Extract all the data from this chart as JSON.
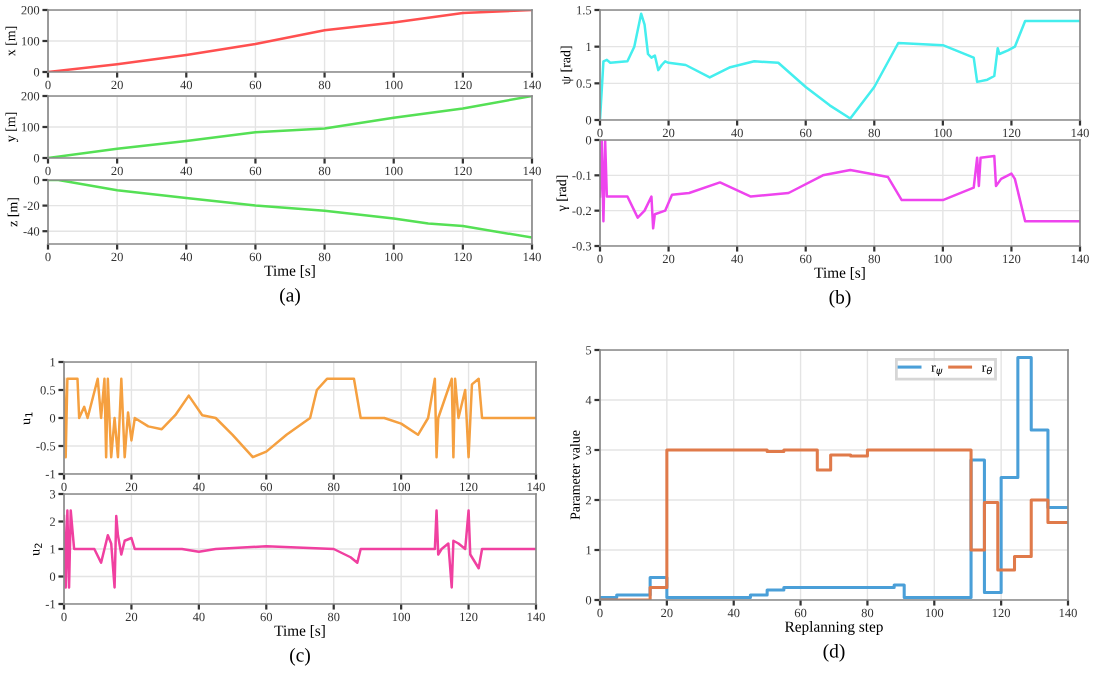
{
  "chart_data": [
    {
      "type": "line",
      "ylabel": "x [m]",
      "x": [
        0,
        20,
        40,
        60,
        80,
        100,
        120,
        140
      ],
      "series": [
        {
          "color": "#ff5050",
          "values": [
            0,
            25,
            55,
            90,
            135,
            160,
            190,
            200
          ]
        }
      ],
      "xlim": [
        0,
        140
      ],
      "xticks": [
        0,
        20,
        40,
        60,
        80,
        100,
        120,
        140
      ],
      "ylim": [
        0,
        200
      ],
      "yticks": [
        0,
        100,
        200
      ],
      "grid": true
    },
    {
      "type": "line",
      "ylabel": "y [m]",
      "x": [
        0,
        20,
        40,
        60,
        80,
        100,
        120,
        140
      ],
      "series": [
        {
          "color": "#55e055",
          "values": [
            0,
            30,
            55,
            83,
            95,
            130,
            160,
            200
          ]
        }
      ],
      "xlim": [
        0,
        140
      ],
      "xticks": [
        0,
        20,
        40,
        60,
        80,
        100,
        120,
        140
      ],
      "ylim": [
        0,
        200
      ],
      "yticks": [
        0,
        100,
        200
      ],
      "grid": true
    },
    {
      "type": "line",
      "ylabel": "z [m]",
      "xlabel": "Time [s]",
      "annotations": [
        "(a)"
      ],
      "x": [
        0,
        3,
        20,
        40,
        60,
        80,
        100,
        110,
        120,
        140
      ],
      "series": [
        {
          "color": "#55e055",
          "values": [
            0,
            0,
            -8,
            -14,
            -20,
            -24,
            -30,
            -34,
            -36,
            -45
          ]
        }
      ],
      "xlim": [
        0,
        140
      ],
      "xticks": [
        0,
        20,
        40,
        60,
        80,
        100,
        120,
        140
      ],
      "ylim": [
        -50,
        0
      ],
      "yticks": [
        -40,
        -20,
        0
      ],
      "grid": true
    },
    {
      "type": "line",
      "ylabel": "ψ [rad]",
      "x": [
        0,
        1,
        2,
        3,
        8,
        10,
        12,
        13,
        14,
        15,
        16,
        17,
        18,
        19,
        20,
        25,
        32,
        38,
        45,
        52,
        60,
        67,
        73,
        80,
        87,
        100,
        109,
        110,
        113,
        115,
        116,
        116.5,
        119,
        121,
        124,
        140
      ],
      "series": [
        {
          "color": "#44eeee",
          "values": [
            0,
            0.8,
            0.82,
            0.78,
            0.8,
            1.0,
            1.45,
            1.3,
            0.9,
            0.85,
            0.88,
            0.68,
            0.75,
            0.8,
            0.78,
            0.75,
            0.58,
            0.72,
            0.8,
            0.78,
            0.45,
            0.2,
            0.02,
            0.45,
            1.05,
            1.02,
            0.85,
            0.52,
            0.55,
            0.6,
            0.98,
            0.9,
            0.95,
            1.0,
            1.35,
            1.35
          ]
        }
      ],
      "xlim": [
        0,
        140
      ],
      "xticks": [
        0,
        20,
        40,
        60,
        80,
        100,
        120,
        140
      ],
      "ylim": [
        0,
        1.5
      ],
      "yticks": [
        0,
        0.5,
        1,
        1.5
      ],
      "grid": true
    },
    {
      "type": "line",
      "ylabel": "γ [rad]",
      "xlabel": "Time [s]",
      "annotations": [
        "(b)"
      ],
      "x": [
        0,
        0.5,
        1,
        1.5,
        2,
        8,
        10,
        11,
        13,
        15,
        15.5,
        16,
        19,
        21,
        26,
        35,
        44,
        55,
        65,
        73,
        84,
        88,
        100,
        109,
        110,
        110.5,
        111,
        115,
        115.5,
        117,
        120,
        121,
        124,
        140
      ],
      "series": [
        {
          "color": "#ee44ee",
          "values": [
            -0.16,
            0,
            -0.23,
            0,
            -0.16,
            -0.16,
            -0.2,
            -0.22,
            -0.2,
            -0.16,
            -0.25,
            -0.21,
            -0.2,
            -0.155,
            -0.15,
            -0.12,
            -0.16,
            -0.15,
            -0.1,
            -0.085,
            -0.105,
            -0.17,
            -0.17,
            -0.135,
            -0.05,
            -0.13,
            -0.05,
            -0.045,
            -0.13,
            -0.11,
            -0.095,
            -0.11,
            -0.23,
            -0.23
          ]
        }
      ],
      "xlim": [
        0,
        140
      ],
      "xticks": [
        0,
        20,
        40,
        60,
        80,
        100,
        120,
        140
      ],
      "ylim": [
        -0.3,
        0
      ],
      "yticks": [
        -0.3,
        -0.2,
        -0.1,
        0
      ],
      "grid": true
    },
    {
      "type": "line",
      "ylabel": "u$_{1}$",
      "x": [
        0,
        0.5,
        1,
        4,
        4.5,
        6,
        7,
        10,
        11,
        12,
        12.5,
        13,
        14,
        15,
        16,
        17,
        18,
        19,
        20,
        21,
        25,
        29,
        33,
        37,
        41,
        45,
        50,
        56,
        60,
        66,
        73,
        75,
        78,
        86,
        88,
        95,
        100,
        105,
        108,
        110,
        110.5,
        111,
        115,
        115.5,
        116,
        117,
        119,
        120,
        121,
        123,
        124,
        140
      ],
      "series": [
        {
          "color": "#f5a040",
          "values": [
            0.7,
            -0.7,
            0.7,
            0.7,
            0,
            0.2,
            0,
            0.7,
            0,
            0.7,
            -0.7,
            0.7,
            -0.7,
            0,
            -0.7,
            0.7,
            -0.7,
            0.1,
            -0.4,
            0,
            -0.15,
            -0.2,
            0.05,
            0.4,
            0.05,
            0,
            -0.3,
            -0.7,
            -0.6,
            -0.3,
            0,
            0.5,
            0.7,
            0.7,
            0,
            0,
            -0.1,
            -0.3,
            0,
            0.7,
            -0.7,
            0,
            0.7,
            -0.7,
            0.7,
            0,
            0.5,
            -0.7,
            0.6,
            0.7,
            0,
            0
          ]
        }
      ],
      "xlim": [
        0,
        140
      ],
      "xticks": [
        0,
        20,
        40,
        60,
        80,
        100,
        120,
        140
      ],
      "ylim": [
        -1,
        1
      ],
      "yticks": [
        -1,
        -0.5,
        0,
        0.5,
        1
      ],
      "grid": true
    },
    {
      "type": "line",
      "ylabel": "u$_{2}$",
      "xlabel": "Time [s]",
      "annotations": [
        "(c)"
      ],
      "x": [
        0,
        0.5,
        1,
        1.5,
        2,
        3,
        9,
        11,
        12,
        13,
        14,
        15,
        15.5,
        16,
        17,
        18,
        20,
        21,
        35,
        40,
        45,
        60,
        80,
        85,
        87,
        88,
        110,
        110.5,
        111,
        112,
        114,
        115,
        115.5,
        117,
        119,
        120,
        120.5,
        123,
        124,
        140
      ],
      "series": [
        {
          "color": "#f040a0",
          "values": [
            2.2,
            -0.4,
            2.4,
            -0.4,
            2.4,
            1,
            1,
            0.5,
            1,
            1.5,
            1.2,
            -0.4,
            2.2,
            1.5,
            0.8,
            1.3,
            1.4,
            1,
            1,
            0.9,
            1,
            1.1,
            1,
            0.7,
            0.5,
            1,
            1,
            2.4,
            0.8,
            1,
            1.2,
            -0.4,
            1.3,
            1.2,
            1,
            2.4,
            0.8,
            0.3,
            1,
            1
          ]
        }
      ],
      "xlim": [
        0,
        140
      ],
      "xticks": [
        0,
        20,
        40,
        60,
        80,
        100,
        120,
        140
      ],
      "ylim": [
        -1,
        3
      ],
      "yticks": [
        -1,
        0,
        1,
        2,
        3
      ],
      "grid": true
    },
    {
      "type": "step",
      "ylabel": "Parameter value",
      "xlabel": "Replanning step",
      "annotations": [
        "(d)"
      ],
      "legend": "top right",
      "series": [
        {
          "name": "r$_{ψ}$",
          "color": "#4a9fd8",
          "x": [
            0,
            5,
            15,
            20,
            45,
            50,
            55,
            88,
            91,
            110,
            111,
            115,
            120,
            125,
            129,
            134,
            140
          ],
          "values": [
            0.05,
            0.1,
            0.45,
            0.05,
            0.1,
            0.2,
            0.25,
            0.3,
            0.05,
            0.05,
            2.8,
            0.15,
            2.45,
            4.85,
            3.4,
            1.85,
            1.85
          ]
        },
        {
          "name": "r$_{θ}$",
          "color": "#e07a4a",
          "x": [
            0,
            15,
            20,
            50,
            55,
            65,
            69,
            75,
            80,
            110,
            111,
            115,
            119,
            124,
            129,
            134,
            140
          ],
          "values": [
            0,
            0.25,
            3,
            2.97,
            3,
            2.6,
            2.9,
            2.88,
            3,
            3,
            1,
            1.95,
            0.6,
            0.87,
            2,
            1.55,
            1.55
          ]
        }
      ],
      "xlim": [
        0,
        140
      ],
      "xticks": [
        0,
        20,
        40,
        60,
        80,
        100,
        120,
        140
      ],
      "ylim": [
        0,
        5
      ],
      "yticks": [
        0,
        1,
        2,
        3,
        4,
        5
      ],
      "grid": true
    }
  ]
}
